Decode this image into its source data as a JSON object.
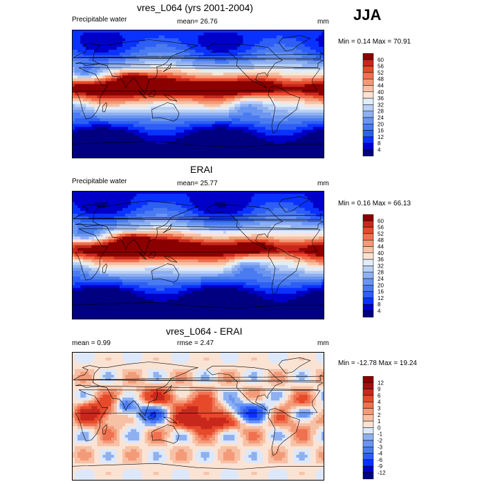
{
  "season": "JJA",
  "panels": [
    {
      "title": "vres_L064 (yrs 2001-2004)",
      "left_label": "Precipitable water",
      "center_label": "mean=  26.76",
      "units": "mm",
      "minmax": "Min =   0.14 Max =  70.91",
      "colorbar_labels": [
        "60",
        "56",
        "52",
        "48",
        "44",
        "40",
        "36",
        "32",
        "28",
        "24",
        "20",
        "16",
        "12",
        "8",
        "4"
      ]
    },
    {
      "title": "ERAI",
      "left_label": "Precipitable water",
      "center_label": "mean=  25.77",
      "units": "mm",
      "minmax": "Min =   0.16 Max =  66.13",
      "colorbar_labels": [
        "60",
        "56",
        "52",
        "48",
        "44",
        "40",
        "36",
        "32",
        "28",
        "24",
        "20",
        "16",
        "12",
        "8",
        "4"
      ]
    },
    {
      "title": "vres_L064 - ERAI",
      "left_label": "mean =    0.99",
      "center_label": "rmse =    2.47",
      "units": "mm",
      "minmax": "Min = -12.78 Max =  19.24",
      "colorbar_labels": [
        "12",
        "9",
        "6",
        "4",
        "3",
        "2",
        "1",
        "0",
        "-1",
        "-2",
        "-3",
        "-4",
        "-6",
        "-9",
        "-12"
      ]
    }
  ],
  "chart_data": [
    {
      "type": "heatmap",
      "title": "vres_L064 (yrs 2001-2004)",
      "variable": "Precipitable water",
      "units": "mm",
      "mean": 26.76,
      "min": 0.14,
      "max": 70.91,
      "contour_levels": [
        4,
        8,
        12,
        16,
        20,
        24,
        28,
        32,
        36,
        40,
        44,
        48,
        52,
        56,
        60
      ],
      "colors": [
        "#000080",
        "#0000c8",
        "#0a32ff",
        "#2e5ff5",
        "#4a7bf0",
        "#6a95f0",
        "#8fb0f0",
        "#b9d0f5",
        "#e2ecfa",
        "#fbe3d4",
        "#f7c1a6",
        "#f39b78",
        "#ef7150",
        "#e64a2a",
        "#c8281c",
        "#8b0000"
      ]
    },
    {
      "type": "heatmap",
      "title": "ERAI",
      "variable": "Precipitable water",
      "units": "mm",
      "mean": 25.77,
      "min": 0.16,
      "max": 66.13,
      "contour_levels": [
        4,
        8,
        12,
        16,
        20,
        24,
        28,
        32,
        36,
        40,
        44,
        48,
        52,
        56,
        60
      ],
      "colors": [
        "#000080",
        "#0000c8",
        "#0a32ff",
        "#2e5ff5",
        "#4a7bf0",
        "#6a95f0",
        "#8fb0f0",
        "#b9d0f5",
        "#e2ecfa",
        "#fbe3d4",
        "#f7c1a6",
        "#f39b78",
        "#ef7150",
        "#e64a2a",
        "#c8281c",
        "#8b0000"
      ]
    },
    {
      "type": "heatmap",
      "title": "vres_L064 - ERAI",
      "units": "mm",
      "mean": 0.99,
      "rmse": 2.47,
      "min": -12.78,
      "max": 19.24,
      "contour_levels": [
        -12,
        -9,
        -6,
        -4,
        -3,
        -2,
        -1,
        0,
        1,
        2,
        3,
        4,
        6,
        9,
        12
      ],
      "colors": [
        "#000080",
        "#0000c8",
        "#0a32ff",
        "#2e5ff5",
        "#4a7bf0",
        "#6a95f0",
        "#8fb0f0",
        "#dde8fa",
        "#fbe3d4",
        "#f7c1a6",
        "#f39b78",
        "#ef7150",
        "#e64a2a",
        "#c8281c",
        "#a01010",
        "#8b0000"
      ]
    }
  ]
}
